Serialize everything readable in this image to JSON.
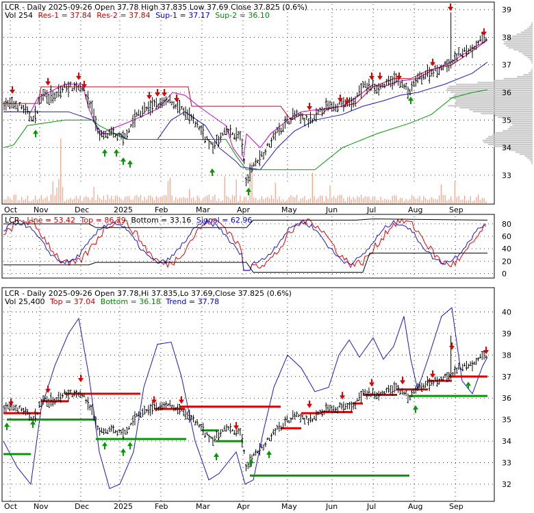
{
  "colors": {
    "background": "#ffffff",
    "frame": "#000000",
    "grid": "#000000",
    "price_bar": "#000000",
    "volume_bar": "#f4a78f",
    "res_line": "#d4001a",
    "sup_line": "#1818c8",
    "envelope_upper": "#cc00cc",
    "envelope_lower": "#009900",
    "volume_profile": "#c8c8c8",
    "res_label": "#cc0000",
    "sup_label": "#0000cc",
    "sup2_label": "#008800",
    "signal_up": "#009900",
    "signal_down": "#dd0000",
    "stoch_k": "#e00000",
    "stoch_d": "#1818c8",
    "trend_line": "#1818c8"
  },
  "top_panel": {
    "legend_line1_prefix": "LCR - Daily 2025-09-26 Open 37.78  High 37.835  Low 37.69  Close 37.825 (0.6%)",
    "legend_line2_vol": "Vol 254",
    "legend_line2_res1": "Res-1 = 37.84",
    "legend_line2_res2": "Res-2 = 37.84",
    "legend_line2_sup1": "Sup-1 = 37.17",
    "legend_line2_sup2": "Sup-2 = 36.10",
    "y_ticks": [
      "39",
      "38",
      "37",
      "36",
      "35",
      "34",
      "33"
    ],
    "y_range": [
      32.7,
      39.2
    ]
  },
  "middle_panel": {
    "legend_prefix": "LCR - ",
    "legend_line": "Line = 53.42",
    "legend_top": "Top = 86.29",
    "legend_bottom": "Bottom = 33.16",
    "legend_signal": "Signal = 62.96",
    "y_ticks": [
      "80",
      "60",
      "40",
      "20",
      "0"
    ],
    "y_range": [
      -4,
      92
    ]
  },
  "bottom_panel": {
    "legend_line1": "LCR - Daily 2025-09-26 Open 37.78,Hi 37.835,Lo 37.69,Close 37.825 (0.6%)",
    "legend_vol": "Vol 25,400",
    "legend_top": "Top = 37.04",
    "legend_bottom": "Bottom = 36.18",
    "legend_trend": "Trend = 37.78",
    "y_ticks": [
      "40",
      "39",
      "38",
      "37",
      "36",
      "35",
      "34",
      "33",
      "32"
    ],
    "y_range": [
      31.3,
      41.0
    ]
  },
  "x_axis": {
    "labels": [
      "Oct",
      "Nov",
      "Dec",
      "2025",
      "Feb",
      "Mar",
      "Apr",
      "May",
      "Jun",
      "Jul",
      "Aug",
      "Sep"
    ]
  },
  "chart_data": {
    "type": "line",
    "symbol": "LCR",
    "x_labels": [
      "Oct",
      "Nov",
      "Dec",
      "2025",
      "Feb",
      "Mar",
      "Apr",
      "May",
      "Jun",
      "Jul",
      "Aug",
      "Sep"
    ],
    "price_close_approx": [
      {
        "month": "Oct",
        "close": 35.5
      },
      {
        "month": "Nov",
        "close": 36.2
      },
      {
        "month": "Dec",
        "close": 34.3
      },
      {
        "month": "2025",
        "close": 35.0
      },
      {
        "month": "Feb",
        "close": 35.6
      },
      {
        "month": "Mar",
        "close": 34.3
      },
      {
        "month": "Apr",
        "close": 33.3
      },
      {
        "month": "May",
        "close": 35.0
      },
      {
        "month": "Jun",
        "close": 35.4
      },
      {
        "month": "Jul",
        "close": 36.2
      },
      {
        "month": "Aug",
        "close": 36.9
      },
      {
        "month": "Sep",
        "close": 37.83
      }
    ],
    "levels": {
      "res1": 37.84,
      "res2": 37.84,
      "sup1": 37.17,
      "sup2": 36.1
    },
    "oscillator": {
      "line": 53.42,
      "top": 86.29,
      "bottom": 33.16,
      "signal": 62.96
    },
    "trend": {
      "top": 37.04,
      "bottom": 36.18,
      "trend": 37.78
    }
  }
}
